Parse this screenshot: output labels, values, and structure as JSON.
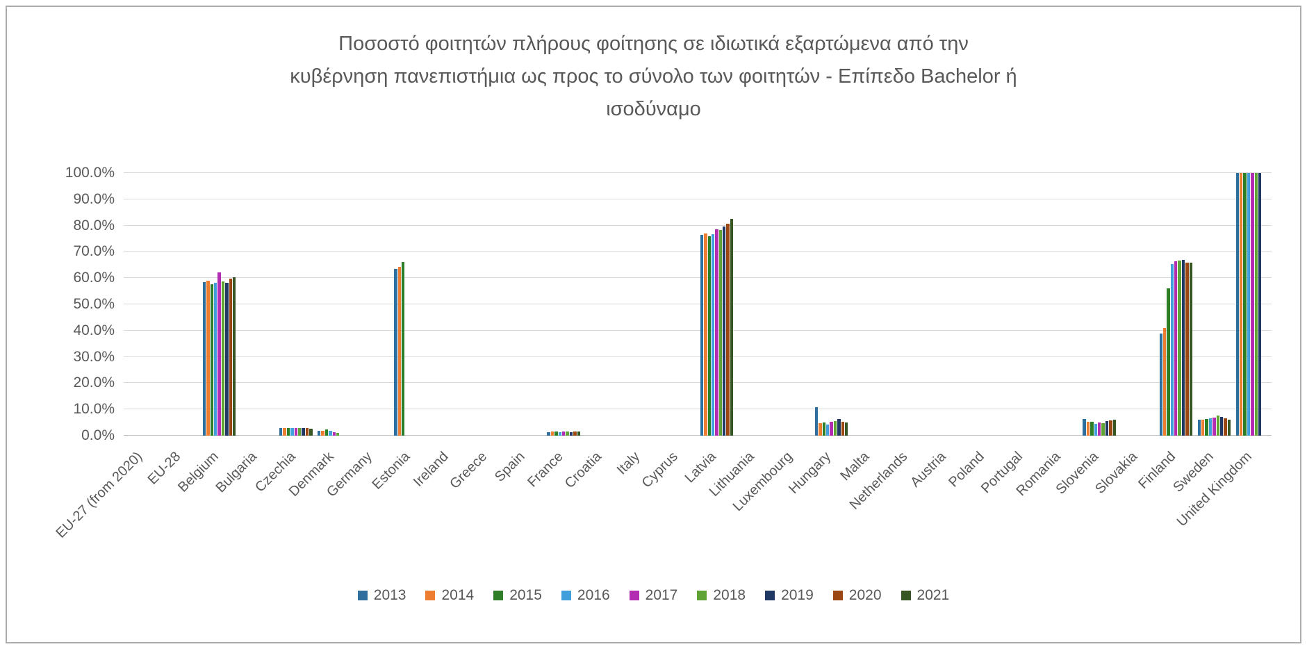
{
  "chart": {
    "title_lines": [
      "Ποσοστό φοιτητών πλήρους φοίτησης σε ιδιωτικά εξαρτώμενα από την",
      "κυβέρνηση πανεπιστήμια ως προς το σύνολο των φοιτητών - Επίπεδο Bachelor ή",
      "ισοδύναμο"
    ]
  },
  "chart_data": {
    "type": "bar",
    "title": "Ποσοστό φοιτητών πλήρους φοίτησης σε ιδιωτικά εξαρτώμενα από την κυβέρνηση πανεπιστήμια ως προς το σύνολο των φοιτητών - Επίπεδο Bachelor ή ισοδύναμο",
    "xlabel": "",
    "ylabel": "",
    "ylim": [
      0,
      100
    ],
    "ytick_step": 10,
    "y_ticks": [
      "100.0%",
      "90.0%",
      "80.0%",
      "70.0%",
      "60.0%",
      "50.0%",
      "40.0%",
      "30.0%",
      "20.0%",
      "10.0%",
      "0.0%"
    ],
    "grid": true,
    "legend_position": "bottom",
    "categories": [
      "EU-27 (from 2020)",
      "EU-28",
      "Belgium",
      "Bulgaria",
      "Czechia",
      "Denmark",
      "Germany",
      "Estonia",
      "Ireland",
      "Greece",
      "Spain",
      "France",
      "Croatia",
      "Italy",
      "Cyprus",
      "Latvia",
      "Lithuania",
      "Luxembourg",
      "Hungary",
      "Malta",
      "Netherlands",
      "Austria",
      "Poland",
      "Portugal",
      "Romania",
      "Slovenia",
      "Slovakia",
      "Finland",
      "Sweden",
      "United Kingdom"
    ],
    "series": [
      {
        "name": "2013",
        "color": "#2E6F9E",
        "values": [
          0,
          0,
          58.5,
          0,
          2.9,
          1.9,
          0,
          63.5,
          0,
          0,
          0,
          1.4,
          0,
          0,
          0,
          76.4,
          0,
          0,
          10.9,
          0,
          0,
          0,
          0,
          0,
          0,
          6.3,
          0,
          38.9,
          6.2,
          100
        ]
      },
      {
        "name": "2014",
        "color": "#ED7D31",
        "values": [
          0,
          0,
          58.9,
          0,
          3.0,
          1.9,
          0,
          64.4,
          0,
          0,
          0,
          1.5,
          0,
          0,
          0,
          77.1,
          0,
          0,
          4.7,
          0,
          0,
          0,
          0,
          0,
          0,
          5.4,
          0,
          41.1,
          6.2,
          100
        ]
      },
      {
        "name": "2015",
        "color": "#2E7D27",
        "values": [
          0,
          0,
          57.6,
          0,
          2.9,
          2.4,
          0,
          66.2,
          0,
          0,
          0,
          1.5,
          0,
          0,
          0,
          75.9,
          0,
          0,
          5.1,
          0,
          0,
          0,
          0,
          0,
          0,
          5.2,
          0,
          56.1,
          6.4,
          100
        ]
      },
      {
        "name": "2016",
        "color": "#41A0DC",
        "values": [
          0,
          0,
          58.2,
          0,
          2.9,
          1.9,
          0,
          0,
          0,
          0,
          0,
          1.4,
          0,
          0,
          0,
          76.8,
          0,
          0,
          4.2,
          0,
          0,
          0,
          0,
          0,
          0,
          4.5,
          0,
          65.3,
          6.6,
          100
        ]
      },
      {
        "name": "2017",
        "color": "#B22DB2",
        "values": [
          0,
          0,
          62.3,
          0,
          2.9,
          1.4,
          0,
          0,
          0,
          0,
          0,
          1.5,
          0,
          0,
          0,
          78.6,
          0,
          0,
          5.4,
          0,
          0,
          0,
          0,
          0,
          0,
          4.9,
          0,
          66.4,
          7.0,
          100
        ]
      },
      {
        "name": "2018",
        "color": "#5FA335",
        "values": [
          0,
          0,
          58.7,
          0,
          2.9,
          1.1,
          0,
          0,
          0,
          0,
          0,
          1.5,
          0,
          0,
          0,
          78.4,
          0,
          0,
          5.6,
          0,
          0,
          0,
          0,
          0,
          0,
          4.8,
          0,
          66.7,
          7.6,
          100
        ]
      },
      {
        "name": "2019",
        "color": "#1F3864",
        "values": [
          0,
          0,
          58.3,
          0,
          2.8,
          0,
          0,
          0,
          0,
          0,
          0,
          1.4,
          0,
          0,
          0,
          79.6,
          0,
          0,
          6.3,
          0,
          0,
          0,
          0,
          0,
          0,
          5.6,
          0,
          66.9,
          7.2,
          100
        ]
      },
      {
        "name": "2020",
        "color": "#9A4711",
        "values": [
          0,
          0,
          59.8,
          0,
          2.8,
          0,
          0,
          0,
          0,
          0,
          0,
          1.5,
          0,
          0,
          0,
          80.8,
          0,
          0,
          5.4,
          0,
          0,
          0,
          0,
          0,
          0,
          5.8,
          0,
          65.8,
          6.6,
          0
        ]
      },
      {
        "name": "2021",
        "color": "#375623",
        "values": [
          0,
          0,
          60.3,
          0,
          2.7,
          0,
          0,
          0,
          0,
          0,
          0,
          1.5,
          0,
          0,
          0,
          82.5,
          0,
          0,
          5.1,
          0,
          0,
          0,
          0,
          0,
          0,
          6.1,
          0,
          65.8,
          6.0,
          0
        ]
      }
    ]
  }
}
